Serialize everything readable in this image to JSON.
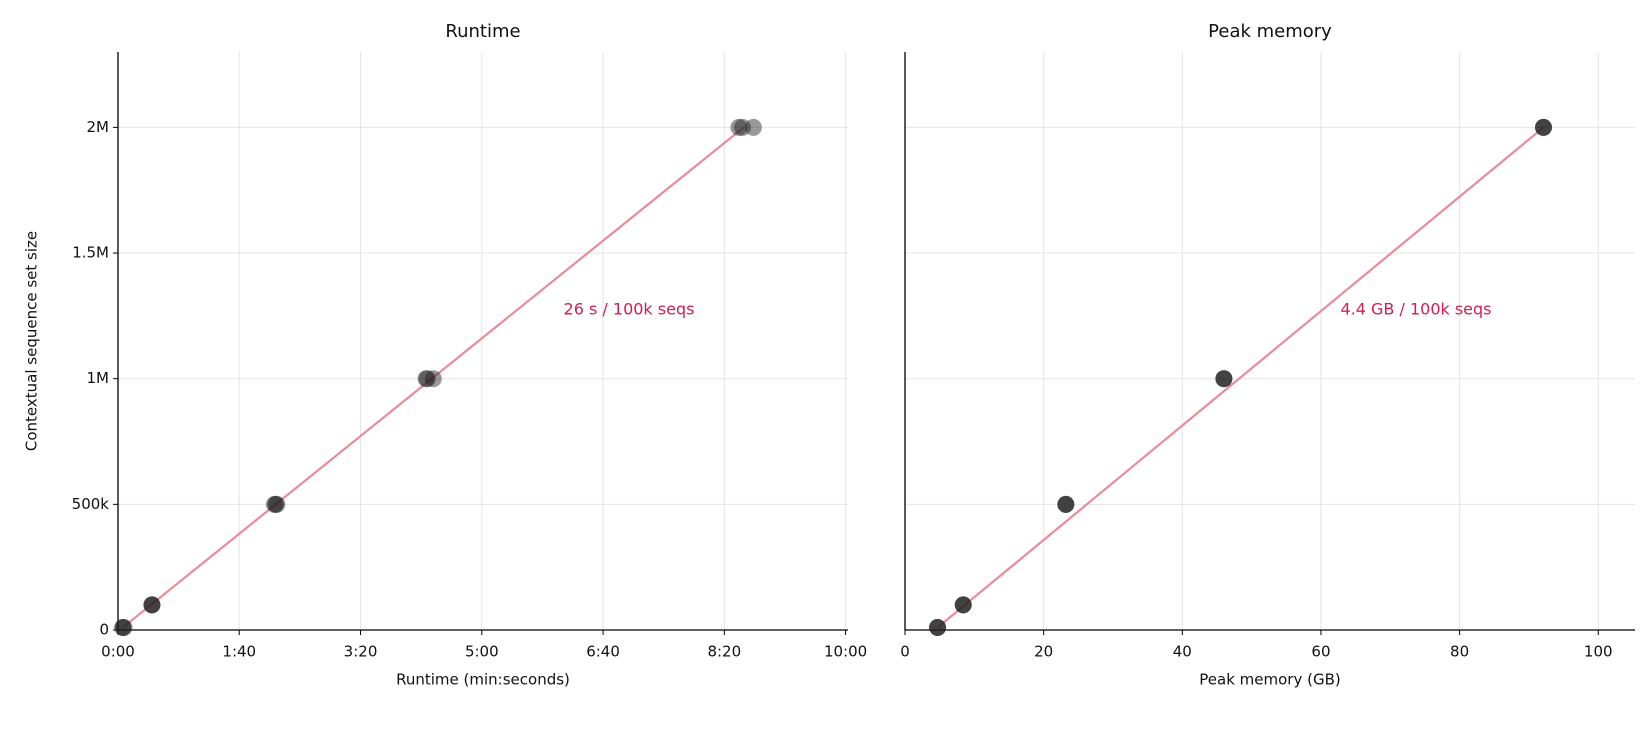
{
  "chart_data": [
    {
      "type": "scatter",
      "title": "Runtime",
      "xlabel": "Runtime  (min:seconds)",
      "ylabel": "Contextual sequence set size",
      "xlim": [
        0,
        602
      ],
      "ylim": [
        0,
        2300000
      ],
      "grid": true,
      "alpha": 0.45,
      "xticks": [
        {
          "value": 0,
          "label": "0:00"
        },
        {
          "value": 100,
          "label": "1:40"
        },
        {
          "value": 200,
          "label": "3:20"
        },
        {
          "value": 300,
          "label": "5:00"
        },
        {
          "value": 400,
          "label": "6:40"
        },
        {
          "value": 500,
          "label": "8:20"
        },
        {
          "value": 600,
          "label": "10:00"
        }
      ],
      "yticks": [
        0,
        {
          "value": 500000,
          "label": "500k"
        },
        {
          "value": 1000000,
          "label": "1M"
        },
        {
          "value": 1500000,
          "label": "1.5M"
        },
        {
          "value": 2000000,
          "label": "2M"
        }
      ],
      "annotation": "26 s / 100k seqs",
      "annotation_color": "#d81b50",
      "series": [
        {
          "type": "scatter",
          "color": "#1c1c1c",
          "x": [
            4,
            4,
            5,
            28,
            28,
            28,
            129,
            130,
            131,
            254,
            255,
            260,
            512,
            515,
            524
          ],
          "values": [
            10000,
            10000,
            10000,
            100000,
            100000,
            100000,
            500000,
            500000,
            500000,
            1000000,
            1000000,
            1000000,
            2000000,
            2000000,
            2000000
          ]
        },
        {
          "type": "line",
          "color": "#ec8a9c",
          "x": [
            4,
            516
          ],
          "values": [
            10000,
            2000000
          ]
        }
      ]
    },
    {
      "type": "scatter",
      "title": "Peak memory",
      "xlabel": "Peak memory  (GB)",
      "sharey": true,
      "xlim": [
        0,
        105.3
      ],
      "ylim": [
        0,
        2300000
      ],
      "grid": true,
      "alpha": 0.45,
      "xticks": [
        0,
        20,
        40,
        60,
        80,
        100
      ],
      "annotation": "4.4 GB / 100k seqs",
      "annotation_color": "#d81b50",
      "series": [
        {
          "type": "scatter",
          "color": "#1c1c1c",
          "x": [
            4.7,
            4.7,
            4.7,
            8.4,
            8.4,
            8.4,
            23.2,
            23.2,
            23.2,
            46.0,
            46.0,
            46.0,
            92.1,
            92.1,
            92.1
          ],
          "values": [
            10000,
            10000,
            10000,
            100000,
            100000,
            100000,
            500000,
            500000,
            500000,
            1000000,
            1000000,
            1000000,
            2000000,
            2000000,
            2000000
          ]
        },
        {
          "type": "line",
          "color": "#ec8a9c",
          "x": [
            4.7,
            92.1
          ],
          "values": [
            10000,
            2000000
          ]
        }
      ]
    }
  ]
}
